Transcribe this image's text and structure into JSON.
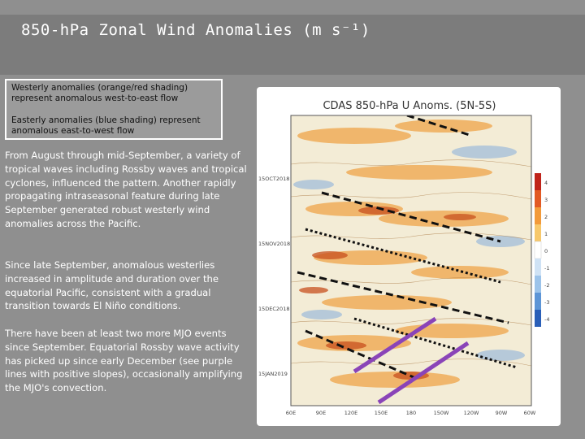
{
  "slide": {
    "title": "850-hPa Zonal Wind Anomalies (m s⁻¹)"
  },
  "legend_box": {
    "westerly": "Westerly anomalies (orange/red shading) represent anomalous west-to-east flow",
    "easterly": "Easterly anomalies (blue shading) represent anomalous east-to-west flow"
  },
  "paragraphs": [
    "From August through mid-September, a variety of tropical waves including Rossby waves and tropical cyclones, influenced the pattern. Another rapidly propagating intraseasonal feature during late September generated robust westerly wind anomalies across the Pacific.",
    "Since late September, anomalous westerlies increased in amplitude and duration over the equatorial Pacific, consistent with a gradual transition towards El Niño conditions.",
    "There have been at least two more MJO events since September. Equatorial Rossby wave activity has picked up since early December (see purple lines with positive slopes), occasionally amplifying the MJO's convection."
  ],
  "figure": {
    "title": "CDAS 850-hPa U Anoms. (5N-5S)",
    "date_labels": [
      "15OCT2018",
      "15NOV2018",
      "15DEC2018",
      "15JAN2019"
    ],
    "lon_labels": [
      "60E",
      "90E",
      "120E",
      "150E",
      "180",
      "150W",
      "120W",
      "90W",
      "60W"
    ],
    "colorbar_labels": [
      "4",
      "3",
      "2",
      "1",
      "0",
      "-1",
      "-2",
      "-3",
      "-4"
    ],
    "colors": {
      "westerly": "#f0a040",
      "strong_westerly": "#c8501e",
      "easterly": "#7aa6dc",
      "rossby_lines": "#8a44b8",
      "mjo_lines": "#111111"
    }
  }
}
